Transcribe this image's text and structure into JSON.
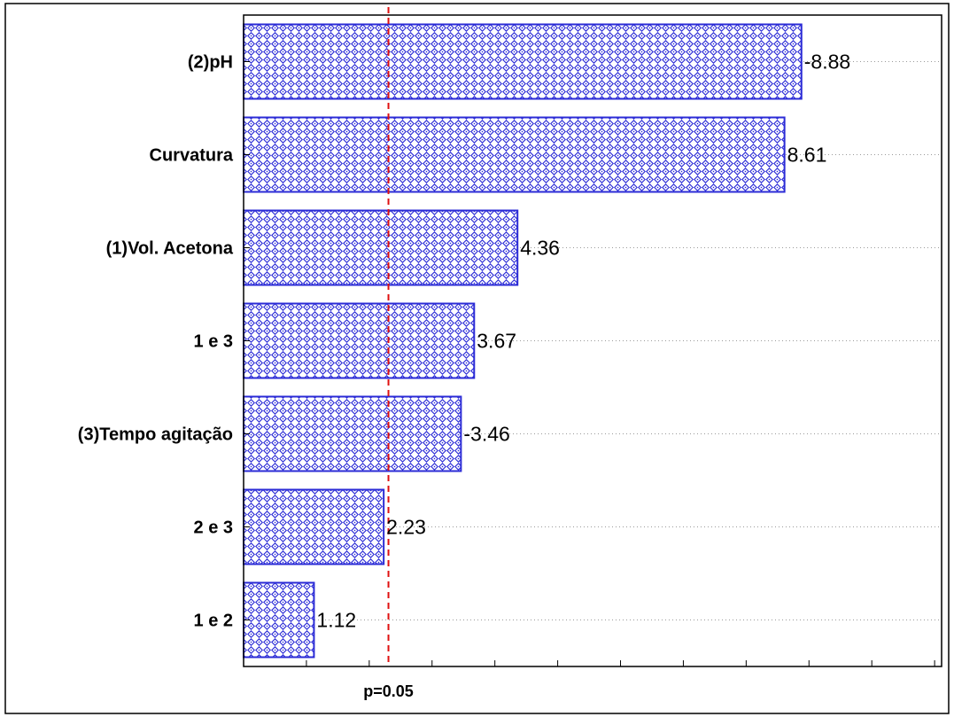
{
  "chart_data": {
    "type": "bar",
    "orientation": "horizontal",
    "categories": [
      "(2)pH",
      "Curvatura",
      "(1)Vol. Acetona",
      "1 e 3",
      "(3)Tempo agitação",
      "2 e 3",
      "1 e 2"
    ],
    "values": [
      8.88,
      8.61,
      4.36,
      3.67,
      3.46,
      2.23,
      1.12
    ],
    "value_labels": [
      "-8.88",
      "8.61",
      "4.36",
      "3.67",
      "-3.46",
      "2.23",
      "1.12"
    ],
    "xlim": [
      0,
      10
    ],
    "reference_line": {
      "value": 2.306,
      "label": "p=0.05",
      "color": "#e01010"
    },
    "bar_color": "#2b2bd6",
    "grid": true
  }
}
